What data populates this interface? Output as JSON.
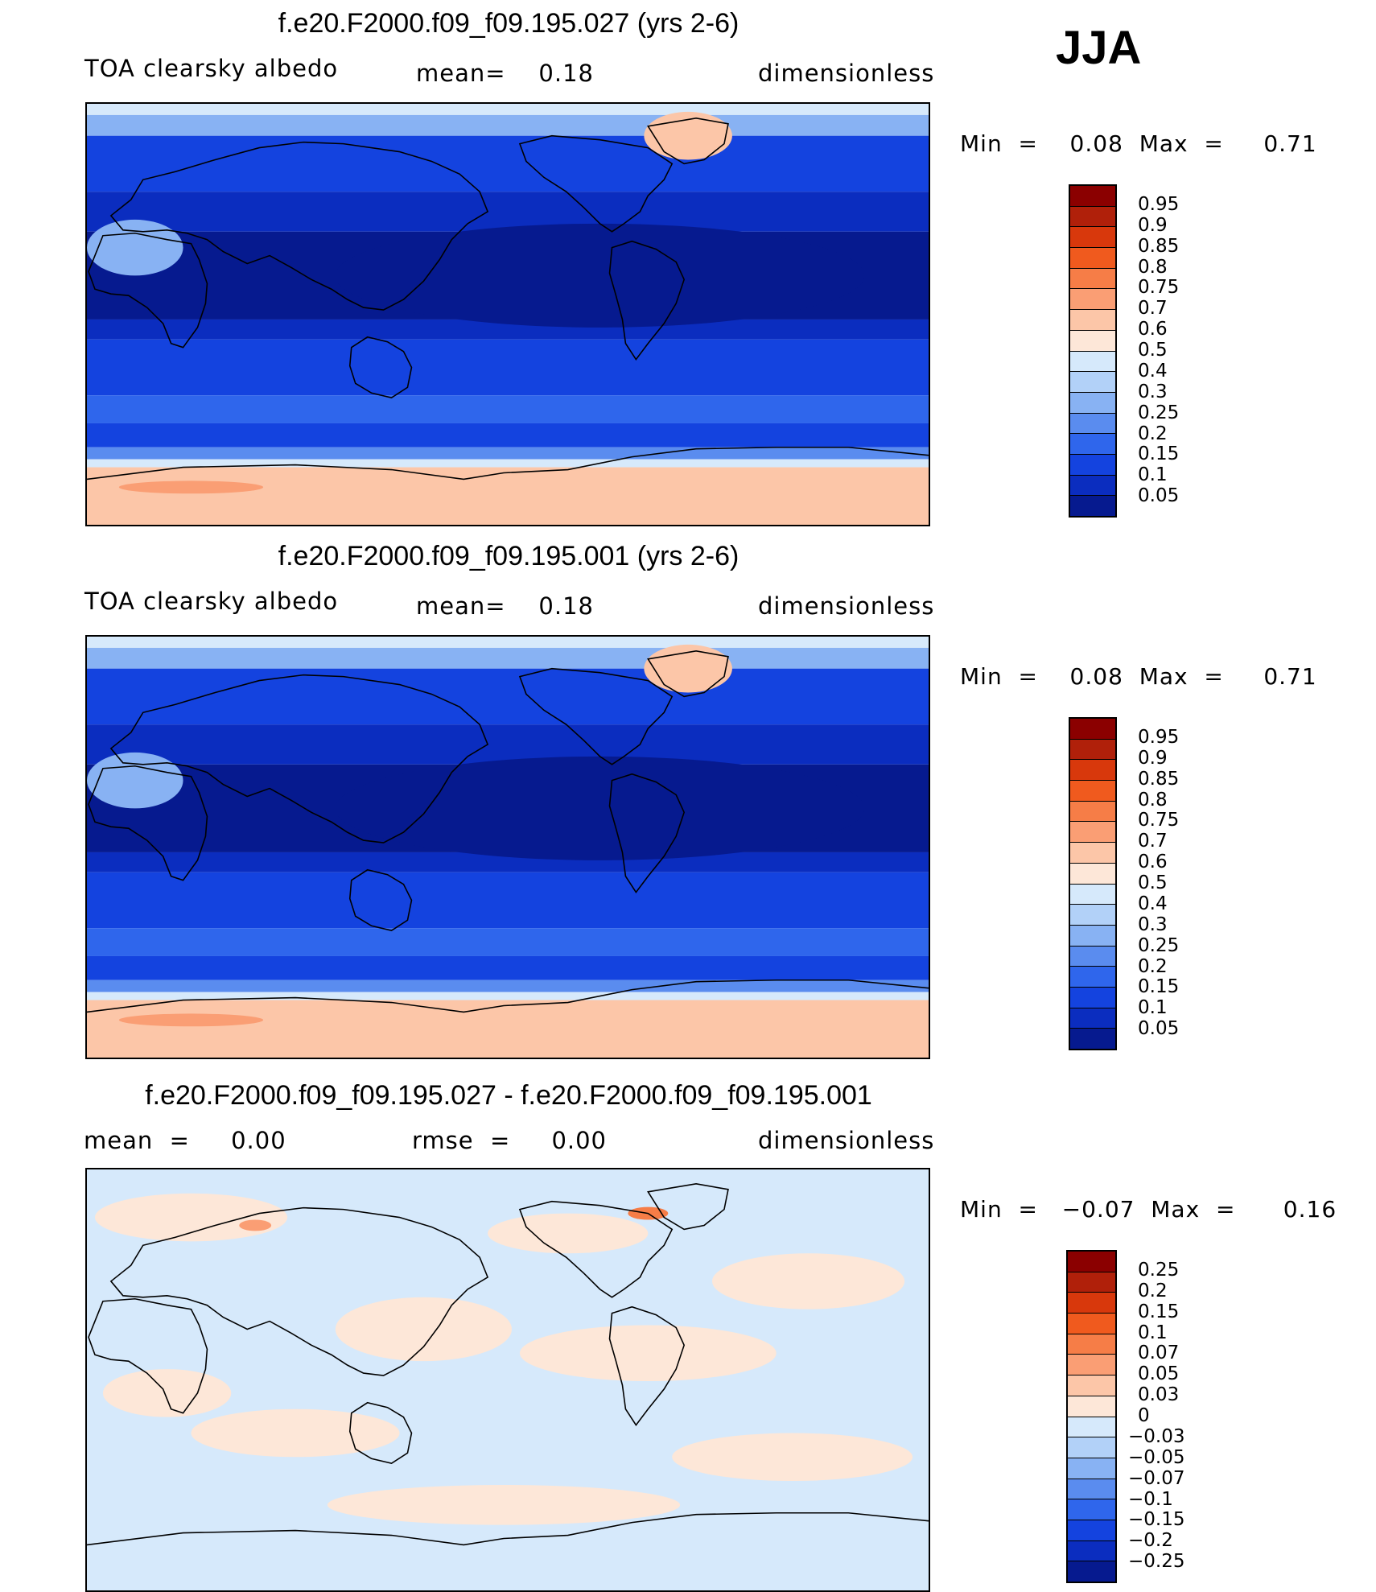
{
  "season": "JJA",
  "panels": [
    {
      "title": "f.e20.F2000.f09_f09.195.027 (yrs 2-6)",
      "sub_left": "TOA clearsky albedo",
      "sub_mid": "mean=    0.18",
      "sub_right": "dimensionless",
      "minmax": "Min  =    0.08  Max  =     0.71",
      "colorbar": {
        "labels": [
          "0.95",
          "0.9",
          "0.85",
          "0.8",
          "0.75",
          "0.7",
          "0.6",
          "0.5",
          "0.4",
          "0.3",
          "0.25",
          "0.2",
          "0.15",
          "0.1",
          "0.05"
        ],
        "colors": [
          "#8b0000",
          "#b0200a",
          "#d8380c",
          "#f05a1e",
          "#f67d47",
          "#fa9e74",
          "#fcc6a8",
          "#fde7d8",
          "#d6e9fb",
          "#b2d1f8",
          "#88b2f3",
          "#5a8cef",
          "#2f66ec",
          "#1443df",
          "#0b2dbf",
          "#061a8f"
        ]
      },
      "field": "abs"
    },
    {
      "title": "f.e20.F2000.f09_f09.195.001 (yrs 2-6)",
      "sub_left": "TOA clearsky albedo",
      "sub_mid": "mean=    0.18",
      "sub_right": "dimensionless",
      "minmax": "Min  =    0.08  Max  =     0.71",
      "colorbar": {
        "labels": [
          "0.95",
          "0.9",
          "0.85",
          "0.8",
          "0.75",
          "0.7",
          "0.6",
          "0.5",
          "0.4",
          "0.3",
          "0.25",
          "0.2",
          "0.15",
          "0.1",
          "0.05"
        ],
        "colors": [
          "#8b0000",
          "#b0200a",
          "#d8380c",
          "#f05a1e",
          "#f67d47",
          "#fa9e74",
          "#fcc6a8",
          "#fde7d8",
          "#d6e9fb",
          "#b2d1f8",
          "#88b2f3",
          "#5a8cef",
          "#2f66ec",
          "#1443df",
          "#0b2dbf",
          "#061a8f"
        ]
      },
      "field": "abs"
    },
    {
      "title": "f.e20.F2000.f09_f09.195.027 - f.e20.F2000.f09_f09.195.001",
      "sub_left": "mean  =     0.00",
      "sub_mid": "rmse  =     0.00",
      "sub_right": "dimensionless",
      "minmax": "Min  =   −0.07  Max  =      0.16",
      "colorbar": {
        "labels": [
          "0.25",
          "0.2",
          "0.15",
          "0.1",
          "0.07",
          "0.05",
          "0.03",
          "0",
          "−0.03",
          "−0.05",
          "−0.07",
          "−0.1",
          "−0.15",
          "−0.2",
          "−0.25"
        ],
        "colors": [
          "#8b0000",
          "#b0200a",
          "#d8380c",
          "#f05a1e",
          "#f67d47",
          "#fa9e74",
          "#fcc6a8",
          "#fde7d8",
          "#d6e9fb",
          "#b2d1f8",
          "#88b2f3",
          "#5a8cef",
          "#2f66ec",
          "#1443df",
          "#0b2dbf",
          "#061a8f"
        ]
      },
      "field": "diff"
    }
  ]
}
